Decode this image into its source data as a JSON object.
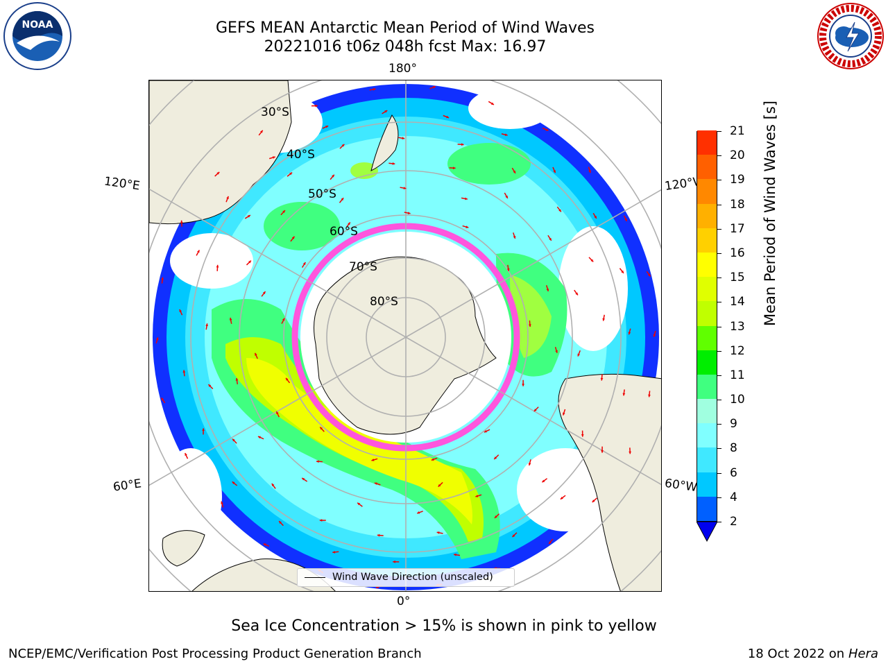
{
  "header": {
    "title_line1": "GEFS MEAN Antarctic Mean Period of Wind Waves",
    "title_line2": "20221016 t06z 048h fcst   Max: 16.97"
  },
  "logos": {
    "left": {
      "name": "noaa-logo",
      "text": "NOAA"
    },
    "right": {
      "name": "nws-logo"
    }
  },
  "map": {
    "projection": "south-polar-stereographic",
    "longitude_labels": {
      "top": "180°",
      "bottom": "0°",
      "left_upper": "120°E",
      "left_lower": "60°E",
      "right_upper": "120°W",
      "right_lower": "60°W"
    },
    "latitude_labels": [
      "30°S",
      "40°S",
      "50°S",
      "60°S",
      "70°S",
      "80°S"
    ],
    "colors": {
      "land": "#efedde",
      "coast": "#000000",
      "grid": "#b0b0b0",
      "ice": "#ff55dd",
      "arrow": "#ee0000"
    },
    "legend": {
      "line_label": "Wind Wave Direction (unscaled)"
    }
  },
  "colorbar": {
    "title": "Mean Period of Wind Waves [s]",
    "ticks": [
      "2",
      "4",
      "6",
      "8",
      "9",
      "10",
      "11",
      "12",
      "13",
      "14",
      "15",
      "16",
      "17",
      "18",
      "19",
      "20",
      "21"
    ],
    "colors": [
      "#0060ff",
      "#00c8ff",
      "#40e8ff",
      "#80ffff",
      "#a0ffe0",
      "#40ff80",
      "#00ee00",
      "#60ff00",
      "#c0ff00",
      "#e0ff00",
      "#ffff00",
      "#ffd000",
      "#ffb000",
      "#ff8800",
      "#ff6000",
      "#ff3000",
      "#ff0000"
    ],
    "extend_color": "#0000ee"
  },
  "footer": {
    "note": "Sea Ice Concentration > 15% is shown in pink to yellow",
    "left": "NCEP/EMC/Verification Post Processing Product Generation Branch",
    "right_date": "18 Oct 2022 on",
    "right_host": "Hera"
  }
}
